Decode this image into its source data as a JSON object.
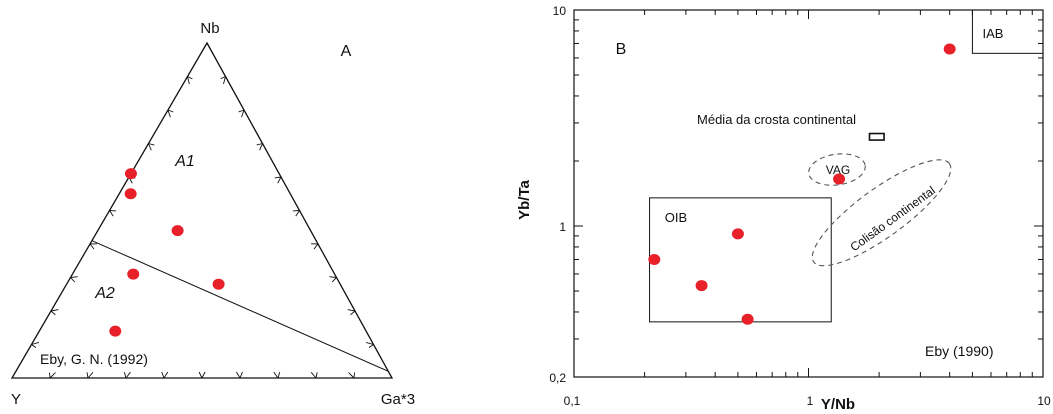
{
  "chart_data": [
    {
      "type": "ternary",
      "panel_label": "A",
      "vertices": {
        "top": "Nb",
        "left": "Y",
        "right": "Ga*3"
      },
      "field_labels": [
        "A1",
        "A2"
      ],
      "source_note": "Eby, G. N. (1992)",
      "dividing_line": {
        "from": [
          0.59,
          0.41,
          0.0
        ],
        "to": [
          0.0,
          0.02,
          0.98
        ]
      },
      "points": [
        {
          "Y": 0.39,
          "Nb": 0.61,
          "Ga3": 0.0
        },
        {
          "Y": 0.42,
          "Nb": 0.55,
          "Ga3": 0.03
        },
        {
          "Y": 0.35,
          "Nb": 0.44,
          "Ga3": 0.21
        },
        {
          "Y": 0.53,
          "Nb": 0.31,
          "Ga3": 0.16
        },
        {
          "Y": 0.32,
          "Nb": 0.28,
          "Ga3": 0.4
        },
        {
          "Y": 0.66,
          "Nb": 0.14,
          "Ga3": 0.2
        }
      ]
    },
    {
      "type": "scatter",
      "panel_label": "B",
      "xlabel": "Y/Nb",
      "ylabel": "Yb/Ta",
      "xscale": "log",
      "yscale": "log",
      "xlim": [
        0.1,
        10
      ],
      "ylim": [
        0.2,
        10
      ],
      "x_tick_labels": [
        {
          "value": 0.1,
          "label": "0,1"
        },
        {
          "value": 1,
          "label": "1"
        },
        {
          "value": 10,
          "label": "10"
        }
      ],
      "y_tick_labels": [
        {
          "value": 0.2,
          "label": "0,2"
        },
        {
          "value": 1,
          "label": "1"
        },
        {
          "value": 10,
          "label": "10"
        }
      ],
      "source_note": "Eby (1990)",
      "fields": [
        {
          "label": "OIB",
          "shape": "rect",
          "x": [
            0.21,
            1.25
          ],
          "y": [
            0.36,
            1.35
          ]
        },
        {
          "label": "IAB",
          "shape": "rect",
          "x": [
            5.0,
            10.0
          ],
          "y": [
            6.3,
            10.0
          ]
        },
        {
          "label": "Média da crosta continental",
          "shape": "rect",
          "x": [
            1.82,
            2.1
          ],
          "y": [
            2.5,
            2.68
          ]
        },
        {
          "label": "VAG",
          "shape": "ellipse",
          "x": [
            1.0,
            1.75
          ],
          "y": [
            1.55,
            2.15
          ]
        },
        {
          "label": "Colisão continental",
          "shape": "ellipse",
          "x": [
            1.0,
            4.2
          ],
          "y": [
            0.68,
            1.95
          ]
        }
      ],
      "x": [
        0.22,
        0.35,
        0.5,
        0.55,
        1.35,
        4.0
      ],
      "y": [
        0.7,
        0.53,
        0.92,
        0.37,
        1.65,
        6.6
      ]
    }
  ]
}
